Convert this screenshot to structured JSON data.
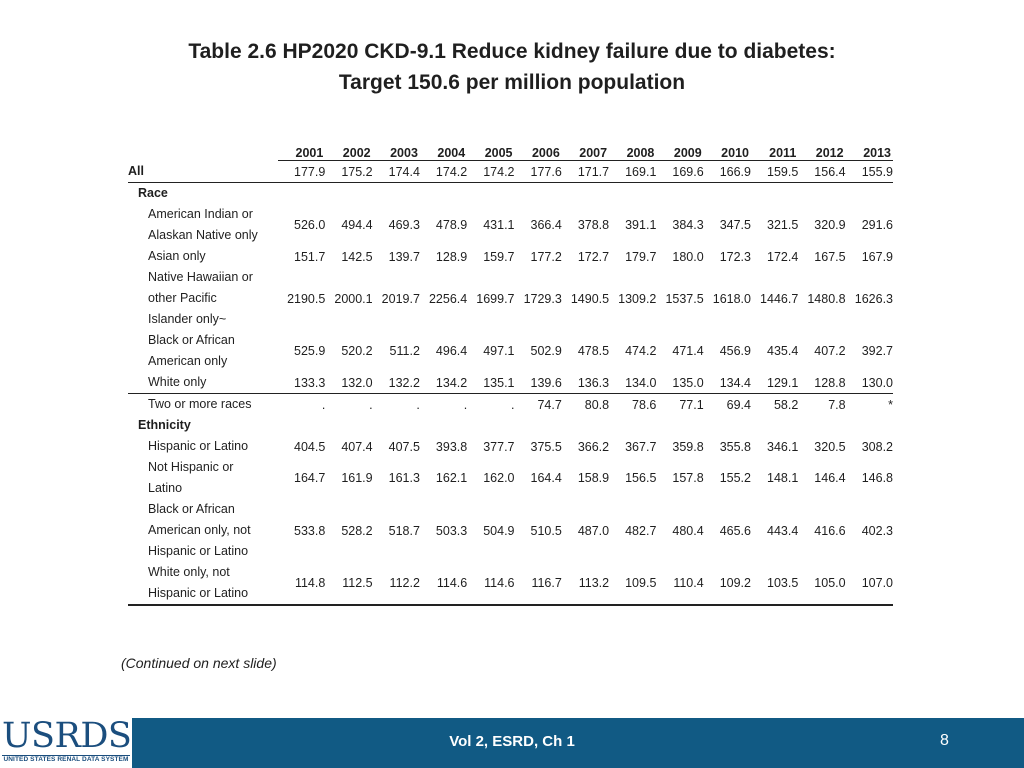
{
  "title": {
    "line1": "Table 2.6  HP2020 CKD-9.1 Reduce kidney failure due to diabetes:",
    "line2": "Target 150.6 per million population"
  },
  "table": {
    "years": [
      "2001",
      "2002",
      "2003",
      "2004",
      "2005",
      "2006",
      "2007",
      "2008",
      "2009",
      "2010",
      "2011",
      "2012",
      "2013"
    ],
    "rows": [
      {
        "label": [
          "All"
        ],
        "level": 0,
        "values": [
          "177.9",
          "175.2",
          "174.4",
          "174.2",
          "174.2",
          "177.6",
          "171.7",
          "169.1",
          "169.6",
          "166.9",
          "159.5",
          "156.4",
          "155.9"
        ],
        "style": "all"
      },
      {
        "label": [
          "Race"
        ],
        "level": 1,
        "values": [],
        "style": "header"
      },
      {
        "label": [
          "American Indian or",
          "Alaskan Native only"
        ],
        "level": 2,
        "values": [
          "526.0",
          "494.4",
          "469.3",
          "478.9",
          "431.1",
          "366.4",
          "378.8",
          "391.1",
          "384.3",
          "347.5",
          "321.5",
          "320.9",
          "291.6"
        ]
      },
      {
        "label": [
          "Asian only"
        ],
        "level": 2,
        "values": [
          "151.7",
          "142.5",
          "139.7",
          "128.9",
          "159.7",
          "177.2",
          "172.7",
          "179.7",
          "180.0",
          "172.3",
          "172.4",
          "167.5",
          "167.9"
        ]
      },
      {
        "label": [
          "Native Hawaiian or",
          "other Pacific",
          "Islander only~"
        ],
        "level": 2,
        "values": [
          "2190.5",
          "2000.1",
          "2019.7",
          "2256.4",
          "1699.7",
          "1729.3",
          "1490.5",
          "1309.2",
          "1537.5",
          "1618.0",
          "1446.7",
          "1480.8",
          "1626.3"
        ]
      },
      {
        "label": [
          "Black or African",
          "American only"
        ],
        "level": 2,
        "values": [
          "525.9",
          "520.2",
          "511.2",
          "496.4",
          "497.1",
          "502.9",
          "478.5",
          "474.2",
          "471.4",
          "456.9",
          "435.4",
          "407.2",
          "392.7"
        ]
      },
      {
        "label": [
          "White only"
        ],
        "level": 2,
        "values": [
          "133.3",
          "132.0",
          "132.2",
          "134.2",
          "135.1",
          "139.6",
          "136.3",
          "134.0",
          "135.0",
          "134.4",
          "129.1",
          "128.8",
          "130.0"
        ],
        "style": "sep"
      },
      {
        "label": [
          "Two or more races"
        ],
        "level": 2,
        "values": [
          ".",
          ".",
          ".",
          ".",
          ".",
          "74.7",
          "80.8",
          "78.6",
          "77.1",
          "69.4",
          "58.2",
          "7.8",
          "*"
        ]
      },
      {
        "label": [
          "Ethnicity"
        ],
        "level": 1,
        "values": [],
        "style": "header"
      },
      {
        "label": [
          "Hispanic or Latino"
        ],
        "level": 2,
        "values": [
          "404.5",
          "407.4",
          "407.5",
          "393.8",
          "377.7",
          "375.5",
          "366.2",
          "367.7",
          "359.8",
          "355.8",
          "346.1",
          "320.5",
          "308.2"
        ]
      },
      {
        "label": [
          "Not Hispanic or",
          "Latino"
        ],
        "level": 2,
        "values": [
          "164.7",
          "161.9",
          "161.3",
          "162.1",
          "162.0",
          "164.4",
          "158.9",
          "156.5",
          "157.8",
          "155.2",
          "148.1",
          "146.4",
          "146.8"
        ]
      },
      {
        "label": [
          "Black or African",
          "American only, not",
          "Hispanic or Latino"
        ],
        "level": 2,
        "values": [
          "533.8",
          "528.2",
          "518.7",
          "503.3",
          "504.9",
          "510.5",
          "487.0",
          "482.7",
          "480.4",
          "465.6",
          "443.4",
          "416.6",
          "402.3"
        ]
      },
      {
        "label": [
          "White only, not",
          "Hispanic or Latino"
        ],
        "level": 2,
        "values": [
          "114.8",
          "112.5",
          "112.2",
          "114.6",
          "114.6",
          "116.7",
          "113.2",
          "109.5",
          "110.4",
          "109.2",
          "103.5",
          "105.0",
          "107.0"
        ],
        "style": "last"
      }
    ]
  },
  "continued": "(Continued on next slide)",
  "footer": {
    "logo_text": "USRDS",
    "logo_subtext": "UNITED STATES RENAL DATA SYSTEM",
    "center_text": "Vol 2, ESRD, Ch 1",
    "page_number": "8",
    "bar_color": "#115a84"
  }
}
